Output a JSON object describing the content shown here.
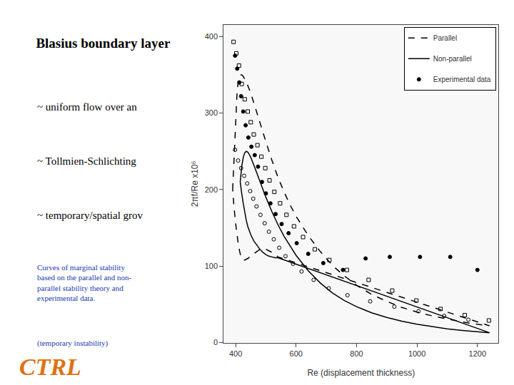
{
  "chart_data": {
    "type": "line",
    "title": "Blasius boundary layer",
    "xlabel": "Re (displacement thickness)",
    "ylabel": "2πf/Re x10⁶",
    "xlim": [
      360,
      1270
    ],
    "ylim": [
      0,
      415
    ],
    "xticks": [
      400,
      600,
      800,
      1000,
      1200
    ],
    "yticks": [
      0,
      100,
      200,
      300,
      400
    ],
    "grid": false,
    "legend": "upper right",
    "series": [
      {
        "name": "Parallel",
        "type": "line",
        "color": "#000000",
        "line_style": "dashed",
        "x": [
          390,
          395,
          400,
          405,
          410,
          415,
          420,
          425,
          430,
          440,
          450,
          460,
          470,
          480,
          490,
          500,
          520,
          540,
          560,
          580,
          600,
          640,
          680,
          720,
          760,
          800,
          850,
          900,
          950,
          1000,
          1050,
          1100,
          1150,
          1200,
          1240,
          540,
          530,
          520,
          510,
          500,
          490,
          480,
          470,
          460,
          450,
          440,
          430,
          425,
          420,
          415,
          410,
          405,
          400,
          395,
          390
        ],
        "values": [
          200,
          240,
          290,
          330,
          345,
          350,
          350,
          348,
          344,
          336,
          326,
          314,
          301,
          288,
          275,
          262,
          238,
          216,
          197,
          180,
          165,
          140,
          119,
          101,
          87,
          75,
          63,
          54,
          46,
          40,
          35,
          31,
          27,
          24,
          22,
          112,
          115,
          118,
          120,
          122,
          123,
          122,
          119,
          116,
          113,
          110,
          108,
          108,
          110,
          116,
          125,
          138,
          155,
          175,
          200
        ]
      },
      {
        "name": "Non-parallel",
        "type": "line",
        "color": "#000000",
        "line_style": "solid",
        "x": [
          415,
          420,
          425,
          430,
          435,
          440,
          445,
          450,
          460,
          470,
          480,
          490,
          500,
          520,
          540,
          560,
          580,
          600,
          640,
          680,
          720,
          760,
          800,
          850,
          900,
          950,
          1000,
          1050,
          1100,
          1150,
          1200,
          1240,
          540,
          530,
          520,
          510,
          500,
          490,
          480,
          470,
          460,
          450,
          445,
          440,
          435,
          430,
          425,
          420,
          415
        ],
        "values": [
          210,
          230,
          242,
          248,
          250,
          249,
          246,
          242,
          232,
          221,
          210,
          200,
          190,
          171,
          154,
          139,
          126,
          114,
          94,
          78,
          65,
          55,
          47,
          39,
          33,
          28,
          24,
          21,
          18,
          16,
          14,
          13,
          111,
          111,
          112,
          113,
          115,
          118,
          122,
          127,
          133,
          141,
          146,
          152,
          160,
          170,
          182,
          195,
          210
        ]
      },
      {
        "name": "Experimental data",
        "type": "scatter",
        "color": "#000000",
        "marker": "circle",
        "x": [
          398,
          405,
          412,
          418,
          425,
          433,
          442,
          452,
          463,
          474,
          487,
          500,
          515,
          532,
          552,
          575,
          602,
          640,
          690,
          755,
          830,
          910,
          1010,
          1110,
          1200
        ],
        "values": [
          375,
          358,
          340,
          322,
          302,
          284,
          268,
          256,
          245,
          230,
          210,
          195,
          182,
          168,
          155,
          143,
          130,
          116,
          104,
          95,
          110,
          112,
          112,
          112,
          95
        ]
      },
      {
        "name": "Experimental data",
        "type": "scatter",
        "color": "#000000",
        "marker": "open square",
        "x": [
          393,
          402,
          411,
          420,
          430,
          440,
          450,
          460,
          472,
          485,
          498,
          512,
          528,
          547,
          568,
          593,
          623,
          662,
          710,
          768,
          840,
          918,
          998,
          1078,
          1158,
          1238
        ],
        "values": [
          393,
          378,
          362,
          338,
          318,
          302,
          288,
          272,
          258,
          243,
          228,
          212,
          197,
          182,
          167,
          152,
          138,
          122,
          108,
          95,
          82,
          68,
          55,
          44,
          36,
          29
        ]
      },
      {
        "name": "Experimental data",
        "type": "scatter",
        "color": "#000000",
        "marker": "open circle",
        "x": [
          398,
          408,
          418,
          428,
          438,
          448,
          458,
          469,
          482,
          496,
          510,
          526,
          544,
          565,
          590,
          618,
          658,
          708,
          770,
          845,
          925,
          1005,
          1090,
          1170
        ],
        "values": [
          252,
          238,
          228,
          218,
          208,
          198,
          188,
          178,
          167,
          156,
          145,
          135,
          124,
          113,
          103,
          93,
          82,
          71,
          62,
          54,
          47,
          41,
          35,
          30
        ]
      }
    ],
    "annotations": [
      {
        "text": "~ uniform flow over an",
        "color": "#000000"
      },
      {
        "text": "~ Tollmien-Schlichting",
        "color": "#000000"
      },
      {
        "text": "~ temporary/spatial grov",
        "color": "#000000"
      },
      {
        "text": "Curves of marginal stability\nbased on the parallel and non-\nparallel stability theory and\nexperimental data.",
        "color": "#1a3ab0"
      },
      {
        "text": "(temporary instability)",
        "color": "#1a3ab0"
      },
      {
        "text": "CTRL",
        "color": "#e07010"
      }
    ]
  }
}
